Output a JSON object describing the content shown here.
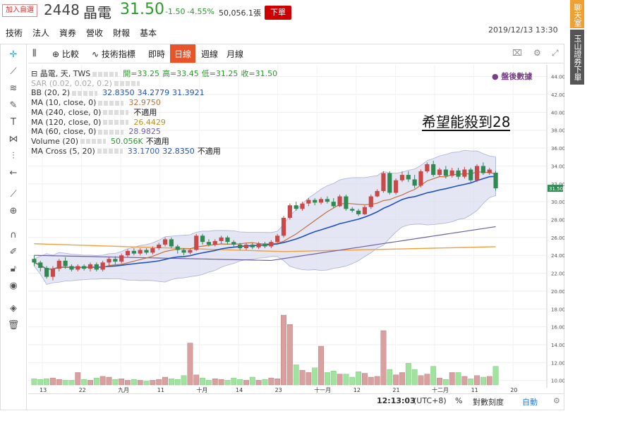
{
  "quote": {
    "add_watchlist": "加入自選",
    "code": "2448",
    "name": "晶電",
    "price": "31.50",
    "change": "-1.50",
    "change_pct": "-4.55%",
    "volume": "50,056.1張",
    "order_label": "下單",
    "timestamp": "2019/12/13 13:30"
  },
  "tabs": [
    "技術",
    "法人",
    "資券",
    "營收",
    "財報",
    "基本"
  ],
  "side": {
    "chat": "聊天室",
    "bank": "玉山證券下單"
  },
  "toolbar": {
    "compare": "比較",
    "indicators": "技術指標",
    "realtime": "即時",
    "daily": "日線",
    "weekly": "週線",
    "monthly": "月線"
  },
  "legend": [
    {
      "label": "晶電, 天, TWS",
      "values": [
        {
          "t": "開=",
          "v": "33.25"
        },
        {
          "t": "高=",
          "v": "33.45"
        },
        {
          "t": "低=",
          "v": "31.25"
        },
        {
          "t": "收=",
          "v": "31.50"
        }
      ]
    },
    {
      "label": "SAR (0.02, 0.02, 0.2)",
      "values": []
    },
    {
      "label": "BB (20, 2)",
      "values": [
        {
          "t": "",
          "v": "32.8350"
        },
        {
          "t": "",
          "v": "34.2779"
        },
        {
          "t": "",
          "v": "31.3921"
        }
      ]
    },
    {
      "label": "MA (10, close, 0)",
      "values": [
        {
          "t": "",
          "v": "32.9750"
        }
      ]
    },
    {
      "label": "MA (240, close, 0)",
      "values": [
        {
          "t": "",
          "v": "不適用"
        }
      ]
    },
    {
      "label": "MA (120, close, 0)",
      "values": [
        {
          "t": "",
          "v": "26.4429"
        }
      ]
    },
    {
      "label": "MA (60, close, 0)",
      "values": [
        {
          "t": "",
          "v": "28.9825"
        }
      ]
    },
    {
      "label": "Volume (20)",
      "values": [
        {
          "t": "",
          "v": "50.056K"
        },
        {
          "t": "",
          "v": "不適用"
        }
      ]
    },
    {
      "label": "MA Cross (5, 20)",
      "values": [
        {
          "t": "",
          "v": "33.1700"
        },
        {
          "t": "",
          "v": "32.8350"
        },
        {
          "t": "",
          "v": "不適用"
        }
      ]
    }
  ],
  "annotation": "希望能殺到28",
  "after_hours": "● 盤後數據",
  "last_price_tag": "31.50",
  "status": {
    "time": "12:13:03",
    "tz": "(UTC+8)",
    "pct": "%",
    "log": "對數刻度",
    "auto": "自動"
  },
  "colors": {
    "up": "#c94848",
    "down": "#2f8a52",
    "ma10": "#c07040",
    "ma60": "#7060a0",
    "ma120": "#f0a040",
    "bb_mid": "#2050c0",
    "bb_fill": "#d8dcf0",
    "vol_up": "#d9a0a0",
    "vol_down": "#9fe39f"
  },
  "chart_data": {
    "type": "candlestick",
    "x_ticks": [
      "13",
      "22",
      "九月",
      "11",
      "十月",
      "14",
      "23",
      "十一月",
      "12",
      "21",
      "十二月",
      "11",
      "20"
    ],
    "y_ticks": [
      "44.00",
      "42.00",
      "40.00",
      "38.00",
      "36.00",
      "34.00",
      "32.00",
      "30.00",
      "28.00",
      "26.00",
      "24.00",
      "22.00",
      "20.00",
      "18.00",
      "16.00",
      "14.00",
      "12.00",
      "10.00"
    ],
    "candles": [
      {
        "o": 23.6,
        "c": 23.2,
        "h": 24.0,
        "l": 22.8,
        "v": 0.8
      },
      {
        "o": 23.2,
        "c": 22.6,
        "h": 23.4,
        "l": 22.2,
        "v": 0.7
      },
      {
        "o": 22.6,
        "c": 21.6,
        "h": 22.8,
        "l": 21.4,
        "v": 0.8
      },
      {
        "o": 21.6,
        "c": 22.5,
        "h": 22.8,
        "l": 21.2,
        "v": 0.9
      },
      {
        "o": 22.5,
        "c": 23.4,
        "h": 23.6,
        "l": 22.2,
        "v": 0.7
      },
      {
        "o": 23.4,
        "c": 22.8,
        "h": 23.8,
        "l": 22.5,
        "v": 0.6
      },
      {
        "o": 22.8,
        "c": 22.4,
        "h": 23.0,
        "l": 22.2,
        "v": 0.6
      },
      {
        "o": 22.4,
        "c": 22.8,
        "h": 23.0,
        "l": 22.2,
        "v": 1.6
      },
      {
        "o": 22.8,
        "c": 22.5,
        "h": 23.0,
        "l": 22.3,
        "v": 0.7
      },
      {
        "o": 22.5,
        "c": 23.0,
        "h": 23.2,
        "l": 22.2,
        "v": 0.6
      },
      {
        "o": 23.0,
        "c": 22.4,
        "h": 23.2,
        "l": 22.2,
        "v": 0.9
      },
      {
        "o": 22.4,
        "c": 23.2,
        "h": 23.4,
        "l": 22.2,
        "v": 1.1
      },
      {
        "o": 23.2,
        "c": 23.6,
        "h": 23.8,
        "l": 22.9,
        "v": 1.0
      },
      {
        "o": 23.6,
        "c": 23.3,
        "h": 23.9,
        "l": 23.0,
        "v": 0.7
      },
      {
        "o": 23.3,
        "c": 24.0,
        "h": 24.2,
        "l": 23.1,
        "v": 0.8
      },
      {
        "o": 24.0,
        "c": 24.5,
        "h": 24.7,
        "l": 23.8,
        "v": 0.6
      },
      {
        "o": 24.5,
        "c": 24.2,
        "h": 24.8,
        "l": 24.0,
        "v": 0.7
      },
      {
        "o": 24.2,
        "c": 24.6,
        "h": 24.8,
        "l": 24.0,
        "v": 0.6
      },
      {
        "o": 24.6,
        "c": 24.3,
        "h": 24.8,
        "l": 24.1,
        "v": 0.5
      },
      {
        "o": 24.3,
        "c": 24.8,
        "h": 25.0,
        "l": 24.1,
        "v": 0.6
      },
      {
        "o": 24.8,
        "c": 25.2,
        "h": 25.4,
        "l": 24.6,
        "v": 0.7
      },
      {
        "o": 25.2,
        "c": 25.8,
        "h": 26.0,
        "l": 25.0,
        "v": 1.0
      },
      {
        "o": 25.8,
        "c": 25.0,
        "h": 26.0,
        "l": 24.8,
        "v": 0.8
      },
      {
        "o": 25.0,
        "c": 24.6,
        "h": 25.2,
        "l": 24.2,
        "v": 0.7
      },
      {
        "o": 24.6,
        "c": 24.3,
        "h": 24.8,
        "l": 24.0,
        "v": 1.2
      },
      {
        "o": 24.3,
        "c": 24.6,
        "h": 24.8,
        "l": 24.1,
        "v": 5.4
      },
      {
        "o": 24.6,
        "c": 26.2,
        "h": 26.4,
        "l": 24.5,
        "v": 1.3
      },
      {
        "o": 26.2,
        "c": 25.5,
        "h": 26.4,
        "l": 25.2,
        "v": 0.9
      },
      {
        "o": 25.5,
        "c": 25.2,
        "h": 25.8,
        "l": 25.0,
        "v": 0.6
      },
      {
        "o": 25.2,
        "c": 25.6,
        "h": 25.8,
        "l": 25.0,
        "v": 0.8
      },
      {
        "o": 25.6,
        "c": 26.0,
        "h": 26.2,
        "l": 25.3,
        "v": 0.7
      },
      {
        "o": 26.0,
        "c": 25.5,
        "h": 26.2,
        "l": 25.2,
        "v": 0.6
      },
      {
        "o": 25.5,
        "c": 25.2,
        "h": 25.7,
        "l": 25.0,
        "v": 0.9
      },
      {
        "o": 25.2,
        "c": 24.8,
        "h": 25.4,
        "l": 24.6,
        "v": 0.7
      },
      {
        "o": 24.8,
        "c": 25.2,
        "h": 25.4,
        "l": 24.6,
        "v": 0.6
      },
      {
        "o": 25.2,
        "c": 24.9,
        "h": 25.4,
        "l": 24.7,
        "v": 1.0
      },
      {
        "o": 24.9,
        "c": 25.3,
        "h": 25.5,
        "l": 24.7,
        "v": 0.6
      },
      {
        "o": 25.3,
        "c": 25.0,
        "h": 25.5,
        "l": 24.8,
        "v": 0.7
      },
      {
        "o": 25.0,
        "c": 25.5,
        "h": 25.7,
        "l": 24.8,
        "v": 0.9
      },
      {
        "o": 25.5,
        "c": 26.2,
        "h": 26.4,
        "l": 25.3,
        "v": 0.8
      },
      {
        "o": 26.2,
        "c": 28.2,
        "h": 28.4,
        "l": 26.0,
        "v": 9.0
      },
      {
        "o": 28.2,
        "c": 29.6,
        "h": 29.8,
        "l": 28.0,
        "v": 7.8
      },
      {
        "o": 29.6,
        "c": 29.2,
        "h": 30.0,
        "l": 29.0,
        "v": 2.6
      },
      {
        "o": 29.2,
        "c": 29.8,
        "h": 30.0,
        "l": 29.0,
        "v": 1.9
      },
      {
        "o": 29.8,
        "c": 30.2,
        "h": 30.4,
        "l": 29.5,
        "v": 1.6
      },
      {
        "o": 30.2,
        "c": 29.9,
        "h": 30.4,
        "l": 29.6,
        "v": 2.2
      },
      {
        "o": 29.9,
        "c": 30.3,
        "h": 30.5,
        "l": 29.7,
        "v": 5.0
      },
      {
        "o": 30.3,
        "c": 30.0,
        "h": 30.6,
        "l": 29.8,
        "v": 1.6
      },
      {
        "o": 30.0,
        "c": 29.5,
        "h": 30.4,
        "l": 29.3,
        "v": 1.8
      },
      {
        "o": 29.5,
        "c": 30.6,
        "h": 30.8,
        "l": 29.4,
        "v": 1.4
      },
      {
        "o": 30.6,
        "c": 29.2,
        "h": 30.8,
        "l": 29.0,
        "v": 1.4
      },
      {
        "o": 29.2,
        "c": 29.0,
        "h": 29.4,
        "l": 28.8,
        "v": 1.0
      },
      {
        "o": 29.0,
        "c": 28.6,
        "h": 29.2,
        "l": 28.4,
        "v": 1.7
      },
      {
        "o": 28.6,
        "c": 29.4,
        "h": 29.6,
        "l": 28.5,
        "v": 1.5
      },
      {
        "o": 29.4,
        "c": 30.6,
        "h": 30.8,
        "l": 29.2,
        "v": 1.0
      },
      {
        "o": 30.6,
        "c": 31.2,
        "h": 31.4,
        "l": 30.5,
        "v": 1.1
      },
      {
        "o": 31.2,
        "c": 33.2,
        "h": 33.4,
        "l": 31.0,
        "v": 7.0
      },
      {
        "o": 33.2,
        "c": 31.0,
        "h": 33.4,
        "l": 30.8,
        "v": 2.0
      },
      {
        "o": 31.0,
        "c": 32.4,
        "h": 32.6,
        "l": 30.8,
        "v": 1.3
      },
      {
        "o": 32.4,
        "c": 33.0,
        "h": 33.4,
        "l": 32.2,
        "v": 1.6
      },
      {
        "o": 33.0,
        "c": 32.5,
        "h": 33.4,
        "l": 32.2,
        "v": 2.8
      },
      {
        "o": 32.5,
        "c": 31.8,
        "h": 33.0,
        "l": 31.5,
        "v": 2.0
      },
      {
        "o": 31.8,
        "c": 33.4,
        "h": 33.6,
        "l": 31.6,
        "v": 1.2
      },
      {
        "o": 33.4,
        "c": 34.2,
        "h": 34.4,
        "l": 33.2,
        "v": 1.4
      },
      {
        "o": 34.2,
        "c": 33.0,
        "h": 34.6,
        "l": 32.8,
        "v": 2.4
      },
      {
        "o": 33.0,
        "c": 33.6,
        "h": 33.8,
        "l": 32.8,
        "v": 0.9
      },
      {
        "o": 33.6,
        "c": 32.9,
        "h": 34.0,
        "l": 32.6,
        "v": 0.7
      },
      {
        "o": 32.9,
        "c": 33.5,
        "h": 33.8,
        "l": 32.7,
        "v": 1.6
      },
      {
        "o": 33.5,
        "c": 32.8,
        "h": 33.8,
        "l": 32.5,
        "v": 1.6
      },
      {
        "o": 32.8,
        "c": 33.6,
        "h": 33.9,
        "l": 32.6,
        "v": 1.1
      },
      {
        "o": 33.6,
        "c": 32.4,
        "h": 33.8,
        "l": 32.2,
        "v": 0.8
      },
      {
        "o": 32.4,
        "c": 34.0,
        "h": 34.2,
        "l": 32.2,
        "v": 1.2
      },
      {
        "o": 34.0,
        "c": 33.2,
        "h": 34.4,
        "l": 33.0,
        "v": 1.0
      },
      {
        "o": 33.2,
        "c": 33.6,
        "h": 33.8,
        "l": 33.0,
        "v": 1.1
      },
      {
        "o": 33.25,
        "c": 31.5,
        "h": 33.45,
        "l": 31.25,
        "v": 2.4
      }
    ],
    "ylim": [
      9.5,
      45
    ],
    "vol_max": 10
  }
}
